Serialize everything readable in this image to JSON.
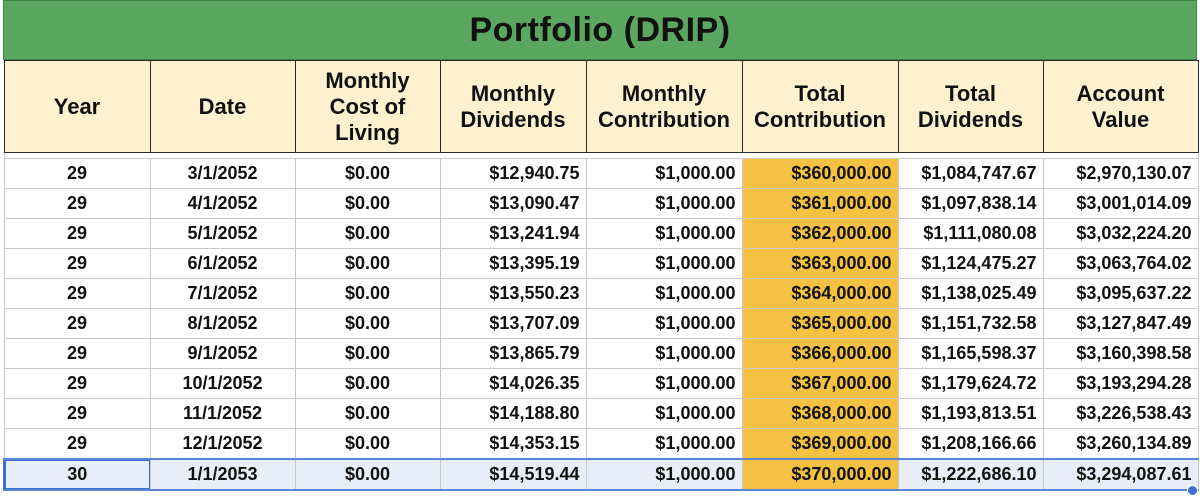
{
  "title": "Portfolio (DRIP)",
  "columns": [
    "Year",
    "Date",
    "Monthly Cost of Living",
    "Monthly Dividends",
    "Monthly Contribution",
    "Total Contribution",
    "Total Dividends",
    "Account Value"
  ],
  "rows": [
    [
      "29",
      "3/1/2052",
      "$0.00",
      "$12,940.75",
      "$1,000.00",
      "$360,000.00",
      "$1,084,747.67",
      "$2,970,130.07"
    ],
    [
      "29",
      "4/1/2052",
      "$0.00",
      "$13,090.47",
      "$1,000.00",
      "$361,000.00",
      "$1,097,838.14",
      "$3,001,014.09"
    ],
    [
      "29",
      "5/1/2052",
      "$0.00",
      "$13,241.94",
      "$1,000.00",
      "$362,000.00",
      "$1,111,080.08",
      "$3,032,224.20"
    ],
    [
      "29",
      "6/1/2052",
      "$0.00",
      "$13,395.19",
      "$1,000.00",
      "$363,000.00",
      "$1,124,475.27",
      "$3,063,764.02"
    ],
    [
      "29",
      "7/1/2052",
      "$0.00",
      "$13,550.23",
      "$1,000.00",
      "$364,000.00",
      "$1,138,025.49",
      "$3,095,637.22"
    ],
    [
      "29",
      "8/1/2052",
      "$0.00",
      "$13,707.09",
      "$1,000.00",
      "$365,000.00",
      "$1,151,732.58",
      "$3,127,847.49"
    ],
    [
      "29",
      "9/1/2052",
      "$0.00",
      "$13,865.79",
      "$1,000.00",
      "$366,000.00",
      "$1,165,598.37",
      "$3,160,398.58"
    ],
    [
      "29",
      "10/1/2052",
      "$0.00",
      "$14,026.35",
      "$1,000.00",
      "$367,000.00",
      "$1,179,624.72",
      "$3,193,294.28"
    ],
    [
      "29",
      "11/1/2052",
      "$0.00",
      "$14,188.80",
      "$1,000.00",
      "$368,000.00",
      "$1,193,813.51",
      "$3,226,538.43"
    ],
    [
      "29",
      "12/1/2052",
      "$0.00",
      "$14,353.15",
      "$1,000.00",
      "$369,000.00",
      "$1,208,166.66",
      "$3,260,134.89"
    ],
    [
      "30",
      "1/1/2053",
      "$0.00",
      "$14,519.44",
      "$1,000.00",
      "$370,000.00",
      "$1,222,686.10",
      "$3,294,087.61"
    ]
  ],
  "selected_row_index": 10,
  "colors": {
    "title_bg": "#5aa75f",
    "header_bg": "#fdf1cf",
    "total_contribution_highlight": "#f5c143",
    "selection": "#3d6fd0"
  }
}
